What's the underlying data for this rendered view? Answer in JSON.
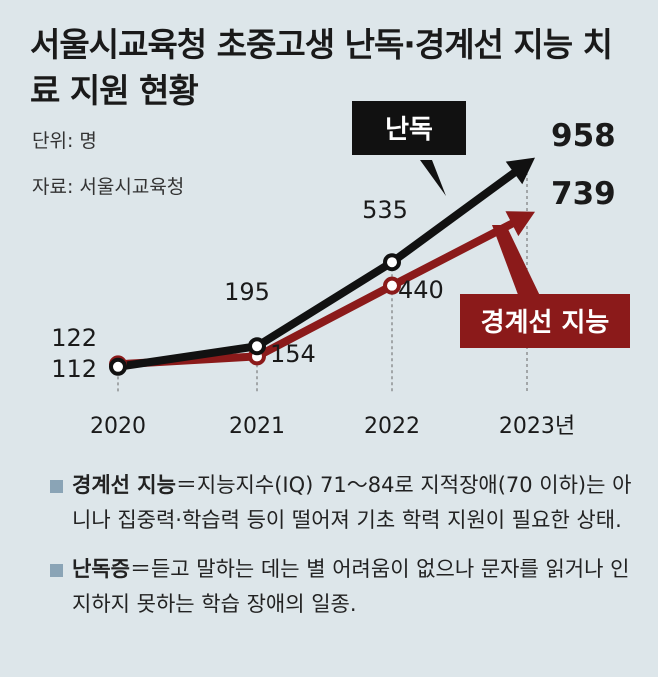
{
  "title": "서울시교육청 초중고생 난독·경계선 지능 치료 지원 현황",
  "unit": "단위: 명",
  "source": "자료: 서울시교육청",
  "colors": {
    "background": "#dde6ea",
    "nandok": "#111111",
    "borderline": "#8b1a1a",
    "note_bullet": "#8aa4b6"
  },
  "chart_data": {
    "type": "line",
    "x": [
      "2020",
      "2021",
      "2022",
      "2023년"
    ],
    "series": [
      {
        "name": "난독",
        "values": [
          112,
          195,
          535,
          958
        ],
        "color": "#111111"
      },
      {
        "name": "경계선 지능",
        "values": [
          122,
          154,
          440,
          739
        ],
        "color": "#8b1a1a"
      }
    ],
    "legend_placement": "inline callouts",
    "grid": "dashed vertical guide per year"
  },
  "notes": [
    {
      "term": "경계선 지능",
      "text": "＝지능지수(IQ) 71～84로 지적장애(70 이하)는 아니나 집중력·학습력 등이 떨어져 기초 학력 지원이 필요한 상태."
    },
    {
      "term": "난독증",
      "text": "＝듣고 말하는 데는 별 어려움이 없으나 문자를 읽거나 인지하지 못하는 학습 장애의 일종."
    }
  ]
}
